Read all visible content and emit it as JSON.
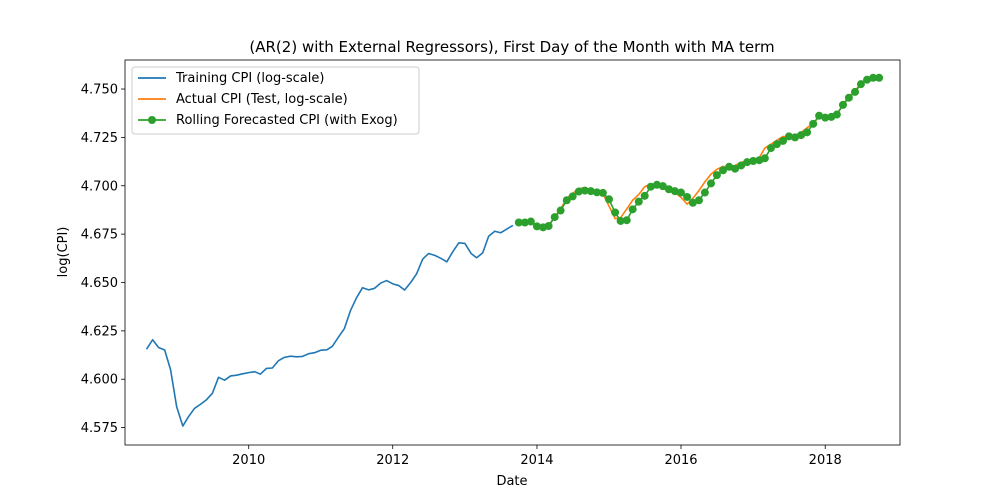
{
  "chart_data": {
    "type": "line",
    "title": "(AR(2) with External Regressors), First Day of the Month with MA term",
    "xlabel": "Date",
    "ylabel": "log(CPI)",
    "xlim": [
      "2008-04-14",
      "2019-01-15"
    ],
    "ylim": [
      4.566,
      4.765
    ],
    "x_ticks": [
      "2010",
      "2012",
      "2014",
      "2016",
      "2018"
    ],
    "y_ticks": [
      "4.575",
      "4.600",
      "4.625",
      "4.650",
      "4.675",
      "4.700",
      "4.725",
      "4.750"
    ],
    "grid": false,
    "legend_position": "top-left",
    "series": [
      {
        "name": "Training CPI (log-scale)",
        "color": "#1f77b4",
        "style": "line",
        "dates": [
          "2008-08-01",
          "2008-09-01",
          "2008-10-01",
          "2008-11-01",
          "2008-12-01",
          "2009-01-01",
          "2009-02-01",
          "2009-03-01",
          "2009-04-01",
          "2009-05-01",
          "2009-06-01",
          "2009-07-01",
          "2009-08-01",
          "2009-09-01",
          "2009-10-01",
          "2009-11-01",
          "2009-12-01",
          "2010-01-01",
          "2010-02-01",
          "2010-03-01",
          "2010-04-01",
          "2010-05-01",
          "2010-06-01",
          "2010-07-01",
          "2010-08-01",
          "2010-09-01",
          "2010-10-01",
          "2010-11-01",
          "2010-12-01",
          "2011-01-01",
          "2011-02-01",
          "2011-03-01",
          "2011-04-01",
          "2011-05-01",
          "2011-06-01",
          "2011-07-01",
          "2011-08-01",
          "2011-09-01",
          "2011-10-01",
          "2011-11-01",
          "2011-12-01",
          "2012-01-01",
          "2012-02-01",
          "2012-03-01",
          "2012-04-01",
          "2012-05-01",
          "2012-06-01",
          "2012-07-01",
          "2012-08-01",
          "2012-09-01",
          "2012-10-01",
          "2012-11-01",
          "2012-12-01",
          "2013-01-01",
          "2013-02-01",
          "2013-03-01",
          "2013-04-01",
          "2013-05-01",
          "2013-06-01",
          "2013-07-01",
          "2013-08-01",
          "2013-09-01"
        ],
        "values": [
          4.6155,
          4.6204,
          4.6164,
          4.6151,
          4.6049,
          4.5857,
          4.5758,
          4.5805,
          4.5849,
          4.587,
          4.5894,
          4.5927,
          4.601,
          4.5995,
          4.6017,
          4.6021,
          4.6028,
          4.6034,
          4.6039,
          4.6026,
          4.6056,
          4.6058,
          4.6096,
          4.6113,
          4.6119,
          4.6116,
          4.6118,
          4.6132,
          4.6137,
          4.615,
          4.6152,
          4.617,
          4.6218,
          4.6262,
          4.6355,
          4.642,
          4.6473,
          4.6462,
          4.647,
          4.6497,
          4.651,
          4.6493,
          4.6484,
          4.6461,
          4.65,
          4.6545,
          4.6621,
          4.665,
          4.664,
          4.6625,
          4.6607,
          4.666,
          4.6705,
          4.6702,
          4.665,
          4.6628,
          4.6653,
          4.6739,
          4.6765,
          4.6757,
          4.6776,
          4.6795
        ]
      },
      {
        "name": "Actual CPI (Test, log-scale)",
        "color": "#ff7f0e",
        "style": "line",
        "dates": [
          "2013-10-01",
          "2013-11-01",
          "2013-12-01",
          "2014-01-01",
          "2014-02-01",
          "2014-03-01",
          "2014-04-01",
          "2014-05-01",
          "2014-06-01",
          "2014-07-01",
          "2014-08-01",
          "2014-09-01",
          "2014-10-01",
          "2014-11-01",
          "2014-12-01",
          "2015-01-01",
          "2015-02-01",
          "2015-03-01",
          "2015-04-01",
          "2015-05-01",
          "2015-06-01",
          "2015-07-01",
          "2015-08-01",
          "2015-09-01",
          "2015-10-01",
          "2015-11-01",
          "2015-12-01",
          "2016-01-01",
          "2016-02-01",
          "2016-03-01",
          "2016-04-01",
          "2016-05-01",
          "2016-06-01",
          "2016-07-01",
          "2016-08-01",
          "2016-09-01",
          "2016-10-01",
          "2016-11-01",
          "2016-12-01",
          "2017-01-01",
          "2017-02-01",
          "2017-03-01",
          "2017-04-01",
          "2017-05-01",
          "2017-06-01",
          "2017-07-01",
          "2017-08-01",
          "2017-09-01",
          "2017-10-01",
          "2017-11-01",
          "2017-12-01",
          "2018-01-01",
          "2018-02-01",
          "2018-03-01",
          "2018-04-01",
          "2018-05-01",
          "2018-06-01",
          "2018-07-01",
          "2018-08-01",
          "2018-09-01",
          "2018-10-01"
        ],
        "values": [
          4.681,
          4.6812,
          4.6815,
          4.679,
          4.6788,
          4.6793,
          4.684,
          4.688,
          4.6935,
          4.696,
          4.6985,
          4.699,
          4.6975,
          4.6968,
          4.696,
          4.6895,
          4.683,
          4.6835,
          4.688,
          4.6925,
          4.6955,
          4.6995,
          4.701,
          4.7,
          4.6985,
          4.6975,
          4.6965,
          4.694,
          4.6905,
          4.6935,
          4.6975,
          4.702,
          4.706,
          4.7085,
          4.71,
          4.709,
          4.7105,
          4.712,
          4.713,
          4.713,
          4.7145,
          4.7195,
          4.7215,
          4.7235,
          4.7255,
          4.725,
          4.726,
          4.7275,
          4.73,
          4.732,
          4.736,
          4.7355,
          4.736,
          4.737,
          4.742,
          4.746,
          4.749,
          4.753,
          4.755,
          4.756,
          4.756
        ]
      },
      {
        "name": "Rolling Forecasted CPI (with Exog)",
        "color": "#2ca02c",
        "style": "line-markers",
        "dates": [
          "2013-10-01",
          "2013-11-01",
          "2013-12-01",
          "2014-01-01",
          "2014-02-01",
          "2014-03-01",
          "2014-04-01",
          "2014-05-01",
          "2014-06-01",
          "2014-07-01",
          "2014-08-01",
          "2014-09-01",
          "2014-10-01",
          "2014-11-01",
          "2014-12-01",
          "2015-01-01",
          "2015-02-01",
          "2015-03-01",
          "2015-04-01",
          "2015-05-01",
          "2015-06-01",
          "2015-07-01",
          "2015-08-01",
          "2015-09-01",
          "2015-10-01",
          "2015-11-01",
          "2015-12-01",
          "2016-01-01",
          "2016-02-01",
          "2016-03-01",
          "2016-04-01",
          "2016-05-01",
          "2016-06-01",
          "2016-07-01",
          "2016-08-01",
          "2016-09-01",
          "2016-10-01",
          "2016-11-01",
          "2016-12-01",
          "2017-01-01",
          "2017-02-01",
          "2017-03-01",
          "2017-04-01",
          "2017-05-01",
          "2017-06-01",
          "2017-07-01",
          "2017-08-01",
          "2017-09-01",
          "2017-10-01",
          "2017-11-01",
          "2017-12-01",
          "2018-01-01",
          "2018-02-01",
          "2018-03-01",
          "2018-04-01",
          "2018-05-01",
          "2018-06-01",
          "2018-07-01",
          "2018-08-01",
          "2018-09-01",
          "2018-10-01"
        ],
        "values": [
          4.681,
          4.681,
          4.6815,
          4.679,
          4.6785,
          4.6792,
          4.6838,
          4.6872,
          4.6925,
          4.6945,
          4.697,
          4.6975,
          4.6972,
          4.6966,
          4.6963,
          4.693,
          4.6862,
          4.6818,
          4.6822,
          4.6878,
          4.6918,
          4.6948,
          4.6995,
          4.7005,
          4.6998,
          4.6982,
          4.6972,
          4.6965,
          4.6942,
          4.6912,
          4.6925,
          4.6965,
          4.7012,
          4.7055,
          4.708,
          4.7098,
          4.7088,
          4.7105,
          4.7122,
          4.7128,
          4.7132,
          4.7142,
          4.7195,
          4.7215,
          4.7232,
          4.7255,
          4.725,
          4.7262,
          4.7276,
          4.732,
          4.7362,
          4.7352,
          4.7356,
          4.7368,
          4.7418,
          4.7455,
          4.7485,
          4.7525,
          4.7548,
          4.7558,
          4.7558
        ]
      }
    ]
  }
}
